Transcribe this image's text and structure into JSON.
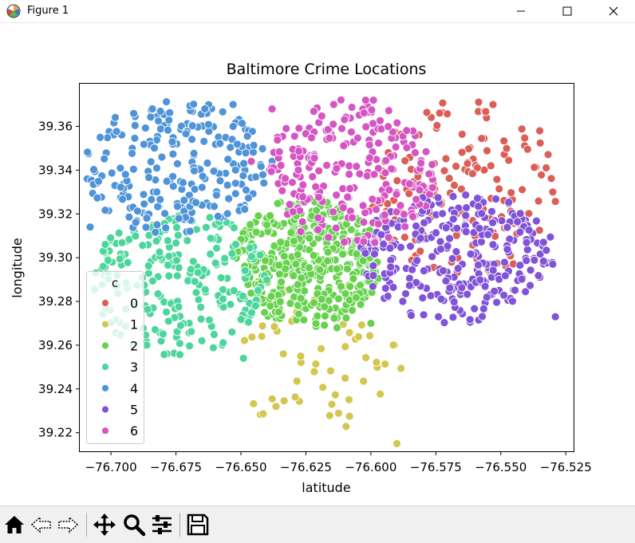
{
  "window": {
    "title": "Figure 1",
    "icons": [
      "matplotlib-logo-icon",
      "minimize-icon",
      "maximize-icon",
      "close-icon"
    ]
  },
  "toolbar": {
    "buttons": [
      "home-icon",
      "back-icon",
      "forward-icon",
      "pan-icon",
      "zoom-icon",
      "configure-subplots-icon",
      "save-icon"
    ]
  },
  "chart_data": {
    "type": "scatter",
    "title": "Baltimore Crime Locations",
    "xlabel": "latitude",
    "ylabel": "longitude",
    "xlim": [
      -76.712,
      -76.522
    ],
    "ylim": [
      39.2115,
      39.3795
    ],
    "xticks": [
      "−76.700",
      "−76.675",
      "−76.650",
      "−76.625",
      "−76.600",
      "−76.575",
      "−76.550",
      "−76.525"
    ],
    "yticks": [
      "39.22",
      "39.24",
      "39.26",
      "39.28",
      "39.30",
      "39.32",
      "39.34",
      "39.36"
    ],
    "grid": false,
    "legend": {
      "title": "c",
      "placement": "lower-left"
    },
    "series": [
      {
        "name": "0",
        "color": "#db5f57",
        "bounds": [
          -76.6,
          -76.528,
          39.29,
          39.372
        ],
        "count": 150,
        "extra": [
          [
            -76.535,
            39.358
          ],
          [
            -76.553,
            39.37
          ],
          [
            -76.53,
            39.33
          ],
          [
            -76.56,
            39.31
          ]
        ]
      },
      {
        "name": "1",
        "color": "#d3c750",
        "bounds": [
          -76.65,
          -76.588,
          39.214,
          39.29
        ],
        "count": 55,
        "extra": [
          [
            -76.59,
            39.215
          ],
          [
            -76.615,
            39.233
          ],
          [
            -76.627,
            39.255
          ],
          [
            -76.642,
            39.264
          ]
        ]
      },
      {
        "name": "2",
        "color": "#67d24e",
        "bounds": [
          -76.652,
          -76.596,
          39.268,
          39.328
        ],
        "count": 420,
        "extra": [
          [
            -76.613,
            39.268
          ],
          [
            -76.6,
            39.27
          ],
          [
            -76.64,
            39.315
          ]
        ]
      },
      {
        "name": "3",
        "color": "#4dd69c",
        "bounds": [
          -76.708,
          -76.64,
          39.255,
          39.322
        ],
        "count": 230,
        "extra": [
          [
            -76.649,
            39.254
          ],
          [
            -76.665,
            39.262
          ],
          [
            -76.703,
            39.296
          ]
        ]
      },
      {
        "name": "4",
        "color": "#4f94d8",
        "bounds": [
          -76.71,
          -76.64,
          39.31,
          39.372
        ],
        "count": 230,
        "extra": [
          [
            -76.708,
            39.314
          ],
          [
            -76.653,
            39.37
          ],
          [
            -76.653,
            39.36
          ],
          [
            -76.638,
            39.344
          ]
        ]
      },
      {
        "name": "5",
        "color": "#8053d7",
        "bounds": [
          -76.605,
          -76.529,
          39.27,
          39.33
        ],
        "count": 290,
        "extra": [
          [
            -76.529,
            39.273
          ],
          [
            -76.53,
            39.297
          ],
          [
            -76.553,
            39.306
          ],
          [
            -76.574,
            39.273
          ]
        ]
      },
      {
        "name": "6",
        "color": "#d556c3",
        "bounds": [
          -76.64,
          -76.575,
          39.305,
          39.373
        ],
        "count": 230,
        "extra": [
          [
            -76.638,
            39.368
          ],
          [
            -76.646,
            39.344
          ],
          [
            -76.602,
            39.372
          ],
          [
            -76.599,
            39.372
          ]
        ]
      }
    ]
  }
}
